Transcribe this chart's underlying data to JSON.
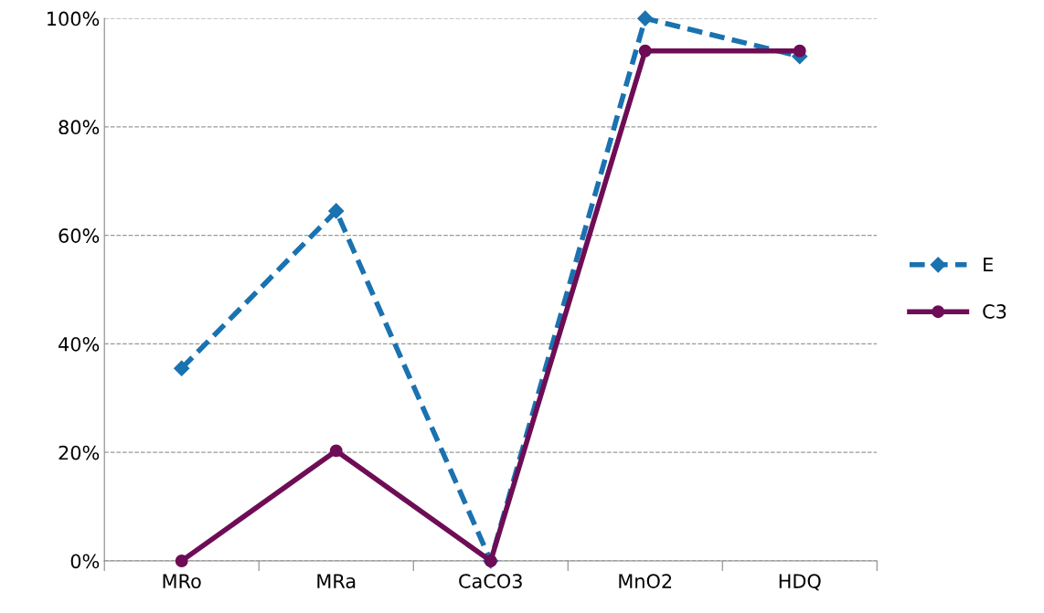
{
  "chart_data": {
    "type": "line",
    "categories": [
      "MRo",
      "MRa",
      "CaCO3",
      "MnO2",
      "HDQ"
    ],
    "series": [
      {
        "name": "E",
        "color": "#1a72b0",
        "values": [
          35.5,
          64.5,
          0,
          100,
          93
        ],
        "line_style": "dashed",
        "marker": "diamond"
      },
      {
        "name": "C3",
        "color": "#6e0d55",
        "values": [
          0,
          20.3,
          0,
          94,
          94
        ],
        "line_style": "solid",
        "marker": "circle"
      }
    ],
    "ylim": [
      0,
      100
    ],
    "yticks": [
      {
        "value": 0,
        "label": "0%"
      },
      {
        "value": 20,
        "label": "20%"
      },
      {
        "value": 40,
        "label": "40%"
      },
      {
        "value": 60,
        "label": "60%"
      },
      {
        "value": 80,
        "label": "80%"
      },
      {
        "value": 100,
        "label": "100%"
      }
    ],
    "grid": "y",
    "legend": "right"
  }
}
